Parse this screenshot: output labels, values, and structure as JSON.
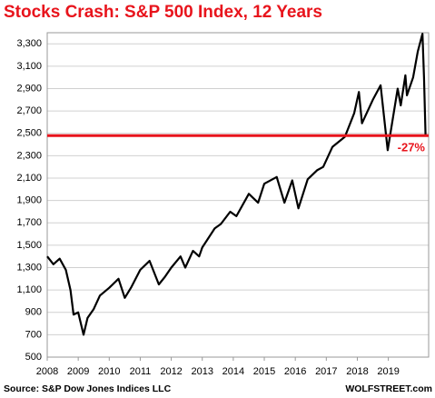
{
  "chart_data": {
    "type": "line",
    "title": "Stocks Crash: S&P 500 Index, 12 Years",
    "source": "Source: S&P Dow Jones Indices LLC",
    "credit": "WOLFSTREET.com",
    "annotation": "-27%",
    "hline": {
      "value": 2480,
      "color": "#e8141c"
    },
    "color": "#000000",
    "grid": true,
    "x": [
      2008.0,
      2008.2,
      2008.4,
      2008.6,
      2008.75,
      2008.85,
      2009.0,
      2009.17,
      2009.3,
      2009.5,
      2009.7,
      2010.0,
      2010.3,
      2010.5,
      2010.7,
      2011.0,
      2011.3,
      2011.6,
      2011.8,
      2012.0,
      2012.3,
      2012.45,
      2012.7,
      2012.9,
      2013.0,
      2013.4,
      2013.6,
      2013.9,
      2014.1,
      2014.5,
      2014.8,
      2015.0,
      2015.4,
      2015.65,
      2015.9,
      2016.1,
      2016.4,
      2016.7,
      2016.9,
      2017.2,
      2017.6,
      2017.9,
      2018.05,
      2018.15,
      2018.5,
      2018.75,
      2018.98,
      2019.3,
      2019.4,
      2019.55,
      2019.6,
      2019.8,
      2019.95,
      2020.1,
      2020.15,
      2020.2
    ],
    "values": [
      1400,
      1330,
      1380,
      1280,
      1100,
      880,
      900,
      700,
      850,
      930,
      1050,
      1120,
      1200,
      1030,
      1120,
      1280,
      1360,
      1150,
      1220,
      1300,
      1400,
      1300,
      1450,
      1400,
      1480,
      1650,
      1690,
      1800,
      1760,
      1960,
      1880,
      2050,
      2110,
      1880,
      2080,
      1830,
      2090,
      2170,
      2200,
      2380,
      2470,
      2680,
      2870,
      2590,
      2800,
      2930,
      2350,
      2900,
      2750,
      3020,
      2840,
      3000,
      3230,
      3390,
      3000,
      2480
    ],
    "xlim": [
      2008,
      2020.3
    ],
    "ylim": [
      500,
      3400
    ],
    "xticks": [
      2008,
      2009,
      2010,
      2011,
      2012,
      2013,
      2014,
      2015,
      2016,
      2017,
      2018,
      2019
    ],
    "yticks": [
      500,
      700,
      900,
      {
        "value": 1100,
        "label": "1,100"
      },
      {
        "value": 1300,
        "label": "1,300"
      },
      {
        "value": 1500,
        "label": "1,500"
      },
      {
        "value": 1700,
        "label": "1,700"
      },
      {
        "value": 1900,
        "label": "1,900"
      },
      {
        "value": 2100,
        "label": "2,100"
      },
      {
        "value": 2300,
        "label": "2,300"
      },
      {
        "value": 2500,
        "label": "2,500"
      },
      {
        "value": 2700,
        "label": "2,700"
      },
      {
        "value": 2900,
        "label": "2,900"
      },
      {
        "value": 3100,
        "label": "3,100"
      },
      {
        "value": 3300,
        "label": "3,300"
      }
    ]
  }
}
